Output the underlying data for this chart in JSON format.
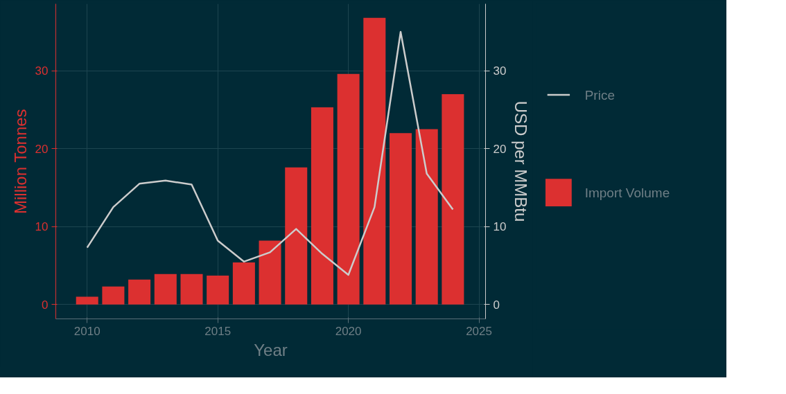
{
  "chart_data": {
    "type": "bar",
    "xlabel": "Year",
    "ylabel": "Million Tonnes",
    "y2label": "USD per MMBtu",
    "x": [
      2010,
      2011,
      2012,
      2013,
      2014,
      2015,
      2016,
      2017,
      2018,
      2019,
      2020,
      2021,
      2022,
      2023,
      2024
    ],
    "series": [
      {
        "name": "Import Volume",
        "color": "#dc3030",
        "values": [
          1.0,
          2.3,
          3.2,
          3.9,
          3.9,
          3.7,
          5.4,
          8.2,
          17.6,
          25.3,
          29.6,
          36.8,
          22.0,
          22.5,
          27.0
        ]
      },
      {
        "name": "Price",
        "type": "line",
        "axis": "y2",
        "color": "#cccccc",
        "values": [
          7.3,
          12.5,
          15.5,
          15.9,
          15.4,
          8.2,
          5.5,
          6.7,
          9.7,
          6.5,
          3.8,
          12.5,
          35.0,
          16.8,
          12.2
        ]
      }
    ],
    "xlim": [
      2008.8,
      2025.25
    ],
    "xticks": [
      2010,
      2015,
      2020,
      2025
    ],
    "ylim": [
      -1.85,
      38.6
    ],
    "yticks": [
      0,
      10,
      20,
      30
    ],
    "y2lim": [
      -1.85,
      38.6
    ],
    "y2ticks": [
      0,
      10,
      20,
      30
    ],
    "grid": true,
    "legend": "right"
  }
}
